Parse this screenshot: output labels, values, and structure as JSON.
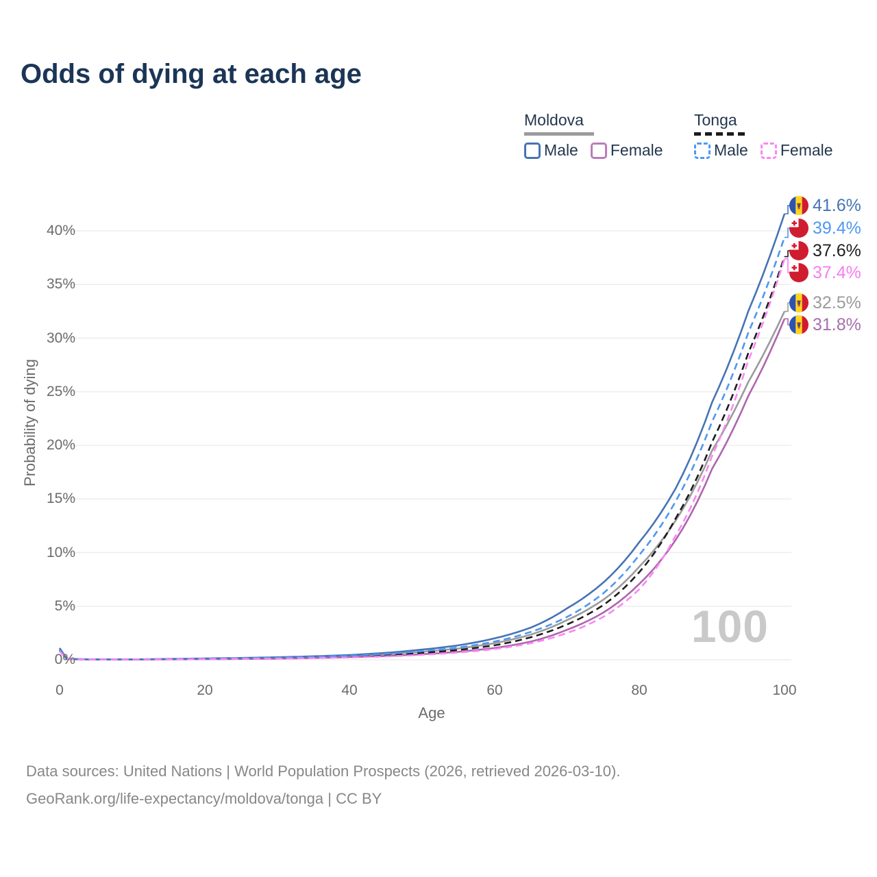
{
  "title": "Odds of dying at each age",
  "legend": {
    "groups": [
      {
        "name": "Moldova",
        "underline_style": "solid",
        "underline_color": "#9b9b9b",
        "items": [
          {
            "label": "Male",
            "color": "#4673b5",
            "style": "solid"
          },
          {
            "label": "Female",
            "color": "#bb7cba",
            "style": "solid"
          }
        ]
      },
      {
        "name": "Tonga",
        "underline_style": "dashed",
        "underline_color": "#1c1c1c",
        "items": [
          {
            "label": "Male",
            "color": "#4f97f2",
            "style": "dashed"
          },
          {
            "label": "Female",
            "color": "#fb86f3",
            "style": "dashed"
          }
        ]
      }
    ]
  },
  "axes": {
    "y_label": "Probability of dying",
    "x_label": "Age",
    "y_ticks": [
      "0%",
      "5%",
      "10%",
      "15%",
      "20%",
      "25%",
      "30%",
      "35%",
      "40%"
    ],
    "x_ticks": [
      "0",
      "20",
      "40",
      "60",
      "80",
      "100"
    ]
  },
  "watermark": "100",
  "end_labels": [
    {
      "value": "41.6%",
      "flag": "moldova",
      "color": "#4673b5"
    },
    {
      "value": "39.4%",
      "flag": "tonga",
      "color": "#4f97f2"
    },
    {
      "value": "37.6%",
      "flag": "tonga",
      "color": "#1f1f1f"
    },
    {
      "value": "37.4%",
      "flag": "tonga",
      "color": "#f77df2"
    },
    {
      "value": "32.5%",
      "flag": "moldova",
      "color": "#9b9b9b"
    },
    {
      "value": "31.8%",
      "flag": "moldova",
      "color": "#a76fae"
    }
  ],
  "source": {
    "line1": "Data sources: United Nations | World Population Prospects (2026, retrieved 2026-03-10).",
    "line2": "GeoRank.org/life-expectancy/moldova/tonga | CC BY"
  },
  "chart_data": {
    "type": "line",
    "title": "Odds of dying at each age",
    "xlabel": "Age",
    "ylabel": "Probability of dying",
    "x": [
      0,
      1,
      5,
      10,
      15,
      20,
      25,
      30,
      35,
      40,
      45,
      50,
      55,
      60,
      65,
      70,
      75,
      80,
      85,
      90,
      95,
      100
    ],
    "y_unit": "percent",
    "xlim": [
      0,
      100
    ],
    "ylim": [
      0,
      43
    ],
    "grid": "horizontal",
    "legend_position": "top-right",
    "series": [
      {
        "name": "Moldova Male",
        "country": "Moldova",
        "sex": "Male",
        "style": "solid",
        "color": "#4673b5",
        "end_label": "41.6%",
        "values": [
          1.1,
          0.08,
          0.04,
          0.04,
          0.08,
          0.13,
          0.17,
          0.24,
          0.33,
          0.45,
          0.65,
          0.95,
          1.35,
          2.0,
          3.0,
          4.8,
          7.2,
          11.0,
          16.0,
          24.0,
          32.5,
          41.6
        ]
      },
      {
        "name": "Tonga Male",
        "country": "Tonga",
        "sex": "Male",
        "style": "dashed",
        "color": "#4f97f2",
        "end_label": "39.4%",
        "values": [
          0.9,
          0.07,
          0.04,
          0.04,
          0.07,
          0.11,
          0.15,
          0.2,
          0.28,
          0.38,
          0.55,
          0.8,
          1.15,
          1.7,
          2.6,
          4.0,
          6.2,
          9.8,
          14.8,
          22.2,
          30.5,
          39.4
        ]
      },
      {
        "name": "Tonga Both sexes",
        "country": "Tonga",
        "sex": "Both",
        "style": "dashed",
        "color": "#1c1c1c",
        "end_label": "37.6%",
        "values": [
          0.85,
          0.06,
          0.03,
          0.03,
          0.06,
          0.09,
          0.12,
          0.16,
          0.22,
          0.3,
          0.44,
          0.65,
          0.92,
          1.35,
          2.1,
          3.3,
          5.1,
          8.2,
          13.2,
          20.3,
          28.6,
          37.6
        ]
      },
      {
        "name": "Tonga Female",
        "country": "Tonga",
        "sex": "Female",
        "style": "dashed",
        "color": "#fb86f3",
        "end_label": "37.4%",
        "values": [
          0.8,
          0.05,
          0.02,
          0.03,
          0.04,
          0.06,
          0.08,
          0.11,
          0.16,
          0.22,
          0.32,
          0.47,
          0.68,
          1.0,
          1.55,
          2.5,
          4.0,
          6.6,
          11.6,
          19.0,
          27.9,
          37.4
        ]
      },
      {
        "name": "Moldova Both sexes",
        "country": "Moldova",
        "sex": "Both",
        "style": "solid",
        "color": "#9b9b9b",
        "end_label": "32.5%",
        "values": [
          1.0,
          0.07,
          0.03,
          0.03,
          0.06,
          0.1,
          0.13,
          0.18,
          0.26,
          0.36,
          0.52,
          0.75,
          1.05,
          1.55,
          2.35,
          3.7,
          5.6,
          8.7,
          13.0,
          19.5,
          25.9,
          32.5
        ]
      },
      {
        "name": "Moldova Female",
        "country": "Moldova",
        "sex": "Female",
        "style": "solid",
        "color": "#ad66ad",
        "end_label": "31.8%",
        "values": [
          0.9,
          0.06,
          0.03,
          0.03,
          0.04,
          0.06,
          0.08,
          0.11,
          0.17,
          0.25,
          0.36,
          0.52,
          0.75,
          1.1,
          1.7,
          2.8,
          4.4,
          7.1,
          11.2,
          17.8,
          24.6,
          31.8
        ]
      }
    ]
  }
}
